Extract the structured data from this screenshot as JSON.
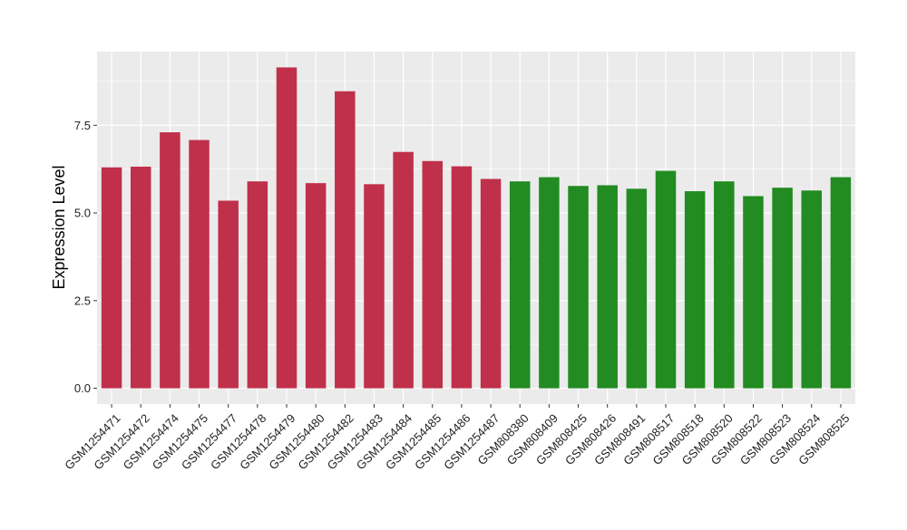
{
  "chart_data": {
    "type": "bar",
    "title": "",
    "xlabel": "",
    "ylabel": "Expression Level",
    "ylim": [
      -0.45,
      9.6
    ],
    "yticks": [
      0.0,
      2.5,
      5.0,
      7.5
    ],
    "ytick_labels": [
      "0.0",
      "2.5",
      "5.0",
      "7.5"
    ],
    "grid": true,
    "panel_background": "#ebebeb",
    "grid_color": "#ffffff",
    "categories": [
      "GSM1254471",
      "GSM1254472",
      "GSM1254474",
      "GSM1254475",
      "GSM1254477",
      "GSM1254478",
      "GSM1254479",
      "GSM1254480",
      "GSM1254482",
      "GSM1254483",
      "GSM1254484",
      "GSM1254485",
      "GSM1254486",
      "GSM1254487",
      "GSM808380",
      "GSM808409",
      "GSM808425",
      "GSM808426",
      "GSM808491",
      "GSM808517",
      "GSM808518",
      "GSM808520",
      "GSM808522",
      "GSM808523",
      "GSM808524",
      "GSM808525"
    ],
    "values": [
      6.3,
      6.32,
      7.3,
      7.08,
      5.35,
      5.9,
      9.15,
      5.85,
      8.47,
      5.82,
      6.74,
      6.48,
      6.33,
      5.97,
      5.9,
      6.02,
      5.77,
      5.79,
      5.69,
      6.2,
      5.62,
      5.9,
      5.48,
      5.72,
      5.64,
      6.02
    ],
    "colors": [
      "#c0304a",
      "#c0304a",
      "#c0304a",
      "#c0304a",
      "#c0304a",
      "#c0304a",
      "#c0304a",
      "#c0304a",
      "#c0304a",
      "#c0304a",
      "#c0304a",
      "#c0304a",
      "#c0304a",
      "#c0304a",
      "#228b22",
      "#228b22",
      "#228b22",
      "#228b22",
      "#228b22",
      "#228b22",
      "#228b22",
      "#228b22",
      "#228b22",
      "#228b22",
      "#228b22",
      "#228b22"
    ]
  }
}
